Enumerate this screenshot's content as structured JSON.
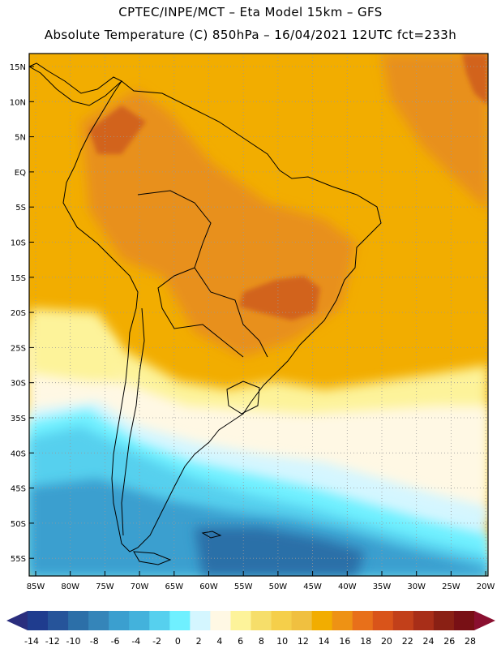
{
  "header": {
    "title_line1": "CPTEC/INPE/MCT –  Eta Model 15km – GFS",
    "title_line2": "Absolute Temperature (C) 850hPa – 16/04/2021 12UTC fct=233h"
  },
  "map": {
    "lat_labels": [
      "15N",
      "10N",
      "5N",
      "EQ",
      "5S",
      "10S",
      "15S",
      "20S",
      "25S",
      "30S",
      "35S",
      "40S",
      "45S",
      "50S",
      "55S"
    ],
    "lon_labels": [
      "85W",
      "80W",
      "75W",
      "70W",
      "65W",
      "60W",
      "55W",
      "50W",
      "45W",
      "40W",
      "35W",
      "30W",
      "25W",
      "20W"
    ],
    "colors": {
      "ocean_warm": "#f2ad00",
      "land_hot": "#e8901e",
      "hottest": "#d2641c",
      "pale_yellow": "#fdf39a",
      "cream": "#fff8e4",
      "light_cyan": "#d4f6ff",
      "cyan": "#6ff0ff",
      "sky": "#56d0ee",
      "blue": "#3b9fcf",
      "deep_blue": "#2c6fa8",
      "gridline": "#999999",
      "coast": "#000000"
    }
  },
  "colorbar": {
    "labels": [
      "-14",
      "-12",
      "-10",
      "-8",
      "-6",
      "-4",
      "-2",
      "0",
      "2",
      "4",
      "6",
      "8",
      "10",
      "12",
      "14",
      "16",
      "18",
      "20",
      "22",
      "24",
      "26",
      "28"
    ],
    "colors": [
      "#1f3c8e",
      "#26549a",
      "#2c6fa8",
      "#3585b9",
      "#3b9fcf",
      "#43b2dc",
      "#56d0ee",
      "#6ff0ff",
      "#d4f6ff",
      "#fff8e4",
      "#fdf39a",
      "#f6de6a",
      "#f5cf4a",
      "#f0c040",
      "#f2ad00",
      "#ee9214",
      "#e8701a",
      "#d9541a",
      "#c2401a",
      "#a82e18",
      "#8a2014",
      "#781015"
    ],
    "left_arrow_color": "#2a2e7e",
    "right_arrow_color": "#8a1030"
  }
}
